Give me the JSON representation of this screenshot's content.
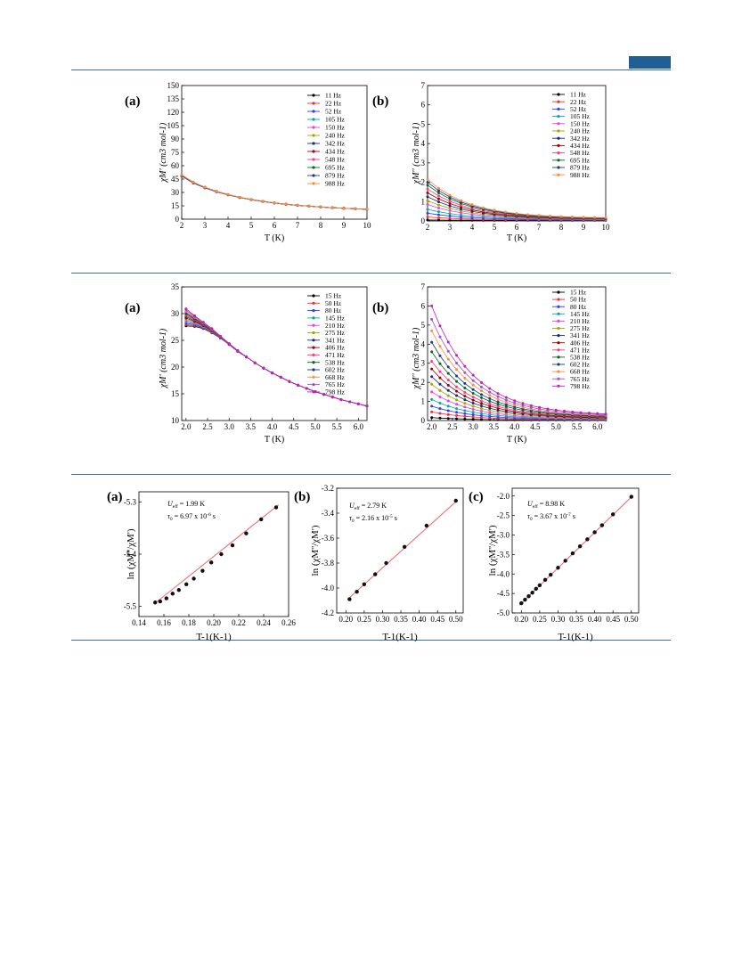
{
  "page": {
    "accent": "#1f5f96",
    "rule_color": "#3b6f98"
  },
  "chart_data": [
    {
      "id": "fig1a",
      "type": "line",
      "panel_label": "(a)",
      "xlabel": "T (K)",
      "ylabel": "χM' (cm3 mol-1)",
      "xlim": [
        2,
        10
      ],
      "ylim": [
        0,
        150
      ],
      "xticks": [
        2,
        3,
        4,
        5,
        6,
        7,
        8,
        9,
        10
      ],
      "yticks": [
        0,
        15,
        30,
        45,
        60,
        75,
        90,
        105,
        120,
        135,
        150
      ],
      "x": [
        2,
        2.5,
        3,
        3.5,
        4,
        4.5,
        5,
        5.5,
        6,
        6.5,
        7,
        7.5,
        8,
        8.5,
        9,
        9.5,
        10
      ],
      "base": [
        49,
        41,
        35.5,
        31,
        27.5,
        24.5,
        22,
        20,
        18.2,
        16.8,
        15.6,
        14.6,
        13.7,
        12.9,
        12.2,
        11.6,
        11.1
      ],
      "spread": [
        0.7,
        0.5,
        0.4,
        0.3,
        0.2,
        0.2,
        0.1,
        0.1,
        0.1,
        0.1,
        0.1,
        0,
        0,
        0,
        0,
        0,
        0
      ],
      "legend": [
        "11 Hz",
        "22 Hz",
        "52 Hz",
        "105 Hz",
        "150 Hz",
        "240 Hz",
        "342 Hz",
        "434 Hz",
        "548 Hz",
        "695 Hz",
        "879 Hz",
        "988 Hz"
      ]
    },
    {
      "id": "fig1b",
      "type": "line",
      "panel_label": "(b)",
      "xlabel": "T (K)",
      "ylabel": "χM'' (cm3 mol-1)",
      "xlim": [
        2,
        10
      ],
      "ylim": [
        0,
        7
      ],
      "xticks": [
        2,
        3,
        4,
        5,
        6,
        7,
        8,
        9,
        10
      ],
      "yticks": [
        0,
        1,
        2,
        3,
        4,
        5,
        6,
        7
      ],
      "x": [
        2,
        2.5,
        3,
        3.5,
        4,
        4.5,
        5,
        5.5,
        6,
        6.5,
        7,
        7.5,
        8,
        8.5,
        9,
        9.5,
        10
      ],
      "start": [
        0.05,
        0.2,
        0.4,
        0.6,
        0.85,
        1.05,
        1.25,
        1.45,
        1.65,
        1.85,
        2.0,
        2.15
      ],
      "end": [
        0.03,
        0.04,
        0.05,
        0.06,
        0.07,
        0.08,
        0.09,
        0.1,
        0.11,
        0.12,
        0.13,
        0.14
      ],
      "legend": [
        "11 Hz",
        "22 Hz",
        "52 Hz",
        "105 Hz",
        "150 Hz",
        "240 Hz",
        "342 Hz",
        "434 Hz",
        "548 Hz",
        "695 Hz",
        "879 Hz",
        "988 Hz"
      ]
    },
    {
      "id": "fig2a",
      "type": "line",
      "panel_label": "(a)",
      "xlabel": "T (K)",
      "ylabel": "χM' (cm3 mol-1)",
      "xlim": [
        1.9,
        6.2
      ],
      "ylim": [
        10,
        35
      ],
      "xticks": [
        2.0,
        2.5,
        3.0,
        3.5,
        4.0,
        4.5,
        5.0,
        5.5,
        6.0
      ],
      "yticks": [
        10,
        15,
        20,
        25,
        30,
        35
      ],
      "x": [
        2.0,
        2.2,
        2.4,
        2.6,
        2.8,
        3.0,
        3.2,
        3.4,
        3.6,
        3.8,
        4.0,
        4.2,
        4.4,
        4.6,
        4.8,
        5.0,
        5.2,
        5.4,
        5.6,
        5.8,
        6.0,
        6.2
      ],
      "base": [
        29.3,
        28.6,
        27.8,
        26.8,
        25.6,
        24.3,
        23.0,
        21.9,
        20.8,
        19.8,
        18.9,
        18.1,
        17.3,
        16.6,
        16.0,
        15.4,
        14.9,
        14.4,
        13.9,
        13.5,
        13.1,
        12.7
      ],
      "spread": [
        1.6,
        1.0,
        0.6,
        0.4,
        0.2,
        0.1,
        0.1,
        0,
        0,
        0,
        0,
        0,
        0,
        0,
        0,
        0,
        0,
        0,
        0,
        0,
        0,
        0
      ],
      "legend": [
        "15 Hz",
        "50 Hz",
        "80 Hz",
        "145 Hz",
        "210 Hz",
        "275 Hz",
        "341 Hz",
        "406 Hz",
        "471 Hz",
        "538 Hz",
        "602 Hz",
        "668 Hz",
        "765 Hz",
        "798 Hz"
      ]
    },
    {
      "id": "fig2b",
      "type": "line",
      "panel_label": "(b)",
      "xlabel": "T (K)",
      "ylabel": "χM'' (cm3 mol-1)",
      "xlim": [
        1.9,
        6.2
      ],
      "ylim": [
        0,
        7
      ],
      "xticks": [
        2.0,
        2.5,
        3.0,
        3.5,
        4.0,
        4.5,
        5.0,
        5.5,
        6.0
      ],
      "yticks": [
        0,
        1,
        2,
        3,
        4,
        5,
        6,
        7
      ],
      "x": [
        2.0,
        2.2,
        2.4,
        2.6,
        2.8,
        3.0,
        3.2,
        3.4,
        3.6,
        3.8,
        4.0,
        4.2,
        4.4,
        4.6,
        4.8,
        5.0,
        5.2,
        5.4,
        5.6,
        5.8,
        6.0,
        6.2
      ],
      "start": [
        0.15,
        0.45,
        0.75,
        1.1,
        1.5,
        1.9,
        2.3,
        2.7,
        3.1,
        3.6,
        4.1,
        4.7,
        5.3,
        6.0
      ],
      "end": [
        0.02,
        0.03,
        0.04,
        0.05,
        0.06,
        0.08,
        0.1,
        0.12,
        0.14,
        0.16,
        0.18,
        0.2,
        0.23,
        0.26
      ],
      "legend": [
        "15 Hz",
        "50 Hz",
        "80 Hz",
        "145 Hz",
        "210 Hz",
        "275 Hz",
        "341 Hz",
        "406 Hz",
        "471 Hz",
        "538 Hz",
        "602 Hz",
        "668 Hz",
        "765 Hz",
        "798 Hz"
      ]
    },
    {
      "id": "fig3a",
      "type": "scatter",
      "panel_label": "(a)",
      "xlabel": "T-1(K-1)",
      "ylabel": "ln (χM''/χM')",
      "xlim": [
        0.14,
        0.26
      ],
      "ylim": [
        -5.52,
        -5.28
      ],
      "xticks": [
        0.14,
        0.16,
        0.18,
        0.2,
        0.22,
        0.24,
        0.26
      ],
      "yticks": [
        -5.5,
        -5.4,
        -5.3
      ],
      "ytick_labels": [
        "-5.5",
        "-5.4",
        "-5.3"
      ],
      "x": [
        0.153,
        0.157,
        0.162,
        0.167,
        0.172,
        0.178,
        0.184,
        0.191,
        0.198,
        0.206,
        0.215,
        0.226,
        0.238,
        0.25
      ],
      "y": [
        -5.493,
        -5.491,
        -5.485,
        -5.476,
        -5.469,
        -5.458,
        -5.447,
        -5.432,
        -5.416,
        -5.4,
        -5.383,
        -5.36,
        -5.333,
        -5.31
      ],
      "fit": {
        "x": [
          0.152,
          0.252
        ],
        "y": [
          -5.496,
          -5.305
        ]
      },
      "annotation": {
        "ueff": "= 1.99 K",
        "tau": "= 6.97 x 10",
        "tau_exp": "-6",
        "tau_unit": " s"
      }
    },
    {
      "id": "fig3b",
      "type": "scatter",
      "panel_label": "(b)",
      "xlabel": "T-1(K-1)",
      "ylabel": "ln (χM''/χM')",
      "xlim": [
        0.175,
        0.52
      ],
      "ylim": [
        -4.2,
        -3.2
      ],
      "xticks": [
        0.2,
        0.25,
        0.3,
        0.35,
        0.4,
        0.45,
        0.5
      ],
      "yticks": [
        -4.2,
        -4.0,
        -3.8,
        -3.6,
        -3.4,
        -3.2
      ],
      "ytick_labels": [
        "-4.2",
        "-4.0",
        "-3.8",
        "-3.6",
        "-3.4",
        "-3.2"
      ],
      "x": [
        0.21,
        0.23,
        0.25,
        0.28,
        0.31,
        0.36,
        0.42,
        0.5
      ],
      "y": [
        -4.09,
        -4.03,
        -3.97,
        -3.89,
        -3.8,
        -3.67,
        -3.5,
        -3.3
      ],
      "fit": {
        "x": [
          0.205,
          0.505
        ],
        "y": [
          -4.09,
          -3.295
        ]
      },
      "annotation": {
        "ueff": "= 2.79 K",
        "tau": "= 2.16 x 10",
        "tau_exp": "-5",
        "tau_unit": " s"
      }
    },
    {
      "id": "fig3c",
      "type": "scatter",
      "panel_label": "(c)",
      "xlabel": "T-1(K-1)",
      "ylabel": "ln (χM''/χM')",
      "xlim": [
        0.175,
        0.52
      ],
      "ylim": [
        -5.0,
        -1.8
      ],
      "xticks": [
        0.2,
        0.25,
        0.3,
        0.35,
        0.4,
        0.45,
        0.5
      ],
      "yticks": [
        -5.0,
        -4.5,
        -4.0,
        -3.5,
        -3.0,
        -2.5,
        -2.0
      ],
      "ytick_labels": [
        "-5.0",
        "-4.5",
        "-4.0",
        "-3.5",
        "-3.0",
        "-2.5",
        "-2.0"
      ],
      "x": [
        0.2,
        0.21,
        0.22,
        0.23,
        0.24,
        0.25,
        0.265,
        0.28,
        0.3,
        0.32,
        0.34,
        0.36,
        0.38,
        0.4,
        0.42,
        0.45,
        0.5
      ],
      "y": [
        -4.75,
        -4.66,
        -4.57,
        -4.48,
        -4.38,
        -4.29,
        -4.15,
        -4.02,
        -3.84,
        -3.66,
        -3.47,
        -3.29,
        -3.11,
        -2.93,
        -2.75,
        -2.47,
        -2.02
      ],
      "fit": {
        "x": [
          0.195,
          0.505
        ],
        "y": [
          -4.8,
          -1.98
        ]
      },
      "annotation": {
        "ueff": "= 8.98 K",
        "tau": "= 3.67 x 10",
        "tau_exp": "-7",
        "tau_unit": " s"
      }
    }
  ],
  "freq_colors": [
    "#000000",
    "#ff2a2a",
    "#2a3cff",
    "#00a8a8",
    "#e640e6",
    "#b0a000",
    "#1a2a7a",
    "#a00000",
    "#ff3a7a",
    "#006b1a",
    "#1a3a8a",
    "#ff8a3a",
    "#a050d0",
    "#c020c0"
  ],
  "fit_color": "#f07070"
}
